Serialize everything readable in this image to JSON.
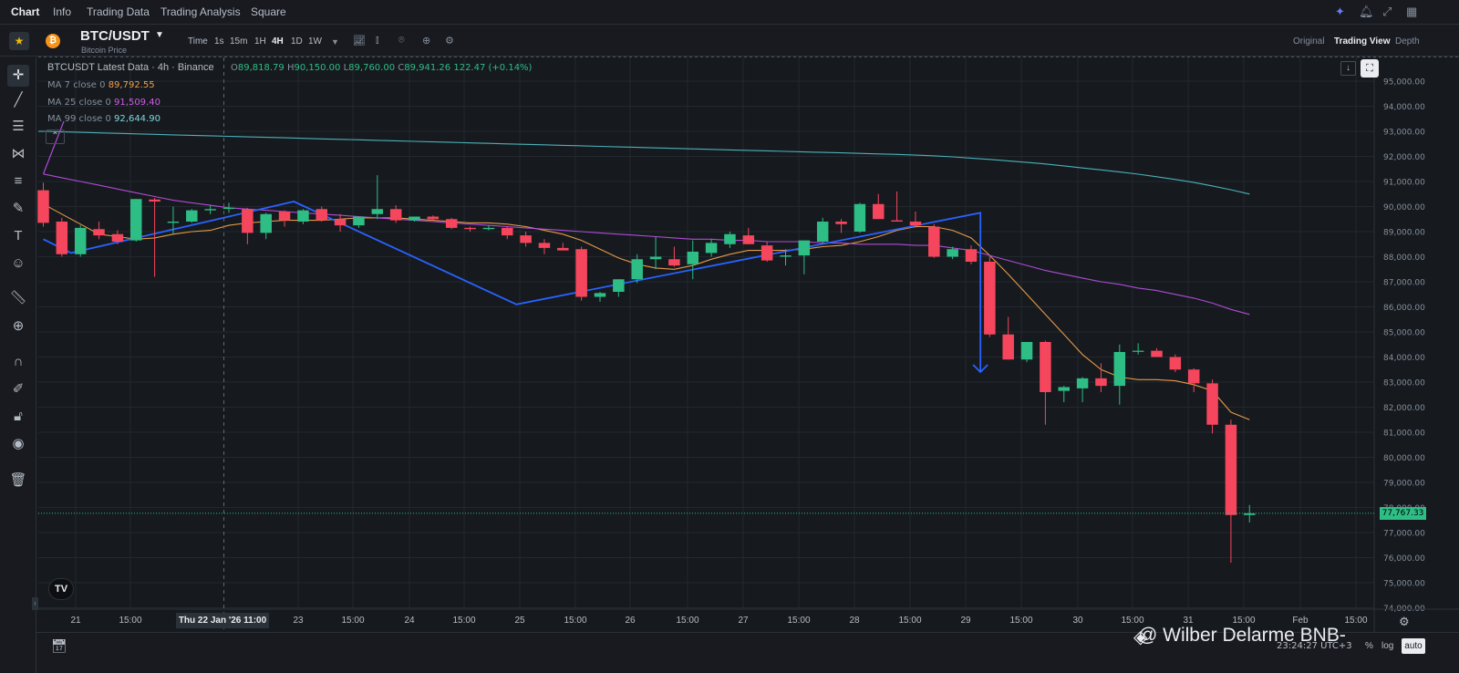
{
  "topnav": {
    "items": [
      "Chart",
      "Info",
      "Trading Data",
      "Trading Analysis",
      "Square"
    ],
    "active": "Chart",
    "right_icons": [
      "sparkle-icon",
      "bell-icon",
      "expand-icon",
      "layout-grid-icon"
    ]
  },
  "symbol": {
    "pair": "BTC/USDT",
    "subtitle": "Bitcoin Price",
    "coin_glyph": "₿",
    "timeframes": [
      "Time",
      "1s",
      "15m",
      "1H",
      "4H",
      "1D",
      "1W"
    ],
    "active_timeframe": "4H",
    "view_modes": [
      "Original",
      "Trading View",
      "Depth"
    ],
    "active_view": "Trading View"
  },
  "legend": {
    "title": "BTCUSDT Latest Data · 4h · Binance",
    "ohlc": {
      "o": "89,818.79",
      "h": "90,150.00",
      "l": "89,760.00",
      "c": "89,941.26",
      "change": "122.47 (+0.14%)"
    },
    "ma7": {
      "label": "MA 7 close 0",
      "value": "89,792.55"
    },
    "ma25": {
      "label": "MA 25 close 0",
      "value": "91,509.40"
    },
    "ma99": {
      "label": "MA 99 close 0",
      "value": "92,644.90"
    }
  },
  "colors": {
    "up": "#2ebd85",
    "down": "#f6465d",
    "ma7": "#f0a04b",
    "ma25": "#b74ee0",
    "ma99": "#4fb8c2",
    "trendline": "#2962ff",
    "grid": "#232830",
    "background": "#161a1e"
  },
  "current_price": "77,767.33",
  "crosshair_date_label": "Thu 22 Jan '26   11:00",
  "bottom": {
    "watermark": "@ Wilber Delarme BNB-",
    "clock": "23:24:27 UTC+3",
    "pct": "%",
    "log": "log",
    "auto": "auto"
  },
  "tools": [
    "crosshair-icon",
    "trendline-icon",
    "horizontal-lines-icon",
    "pattern-icon",
    "fib-icon",
    "brush-icon",
    "text-icon",
    "emoji-icon",
    "ruler-icon",
    "zoom-in-icon",
    "magnet-icon",
    "lock-drawing-icon",
    "lock-icon",
    "eye-icon",
    "trash-icon"
  ],
  "chart_data": {
    "type": "candlestick",
    "title": "BTC/USDT 4h",
    "xlabel": "",
    "ylabel": "",
    "ylim": [
      74000,
      96000
    ],
    "y_ticks": [
      "95,000.00",
      "94,000.00",
      "93,000.00",
      "92,000.00",
      "91,000.00",
      "90,000.00",
      "89,000.00",
      "88,000.00",
      "87,000.00",
      "86,000.00",
      "85,000.00",
      "84,000.00",
      "83,000.00",
      "82,000.00",
      "81,000.00",
      "80,000.00",
      "79,000.00",
      "78,000.00",
      "77,000.00",
      "76,000.00",
      "75,000.00",
      "74,000.00"
    ],
    "x_ticks": [
      "21",
      "15:00",
      "23",
      "15:00",
      "24",
      "15:00",
      "25",
      "15:00",
      "26",
      "15:00",
      "27",
      "15:00",
      "28",
      "15:00",
      "29",
      "15:00",
      "30",
      "15:00",
      "31",
      "15:00",
      "Feb",
      "15:00"
    ],
    "candles": [
      [
        90650,
        90950,
        89200,
        89350
      ],
      [
        89400,
        89550,
        88000,
        88100
      ],
      [
        88100,
        89250,
        88000,
        89150
      ],
      [
        89100,
        89400,
        88700,
        88850
      ],
      [
        88900,
        89050,
        88500,
        88600
      ],
      [
        88650,
        90300,
        88600,
        90300
      ],
      [
        90280,
        90350,
        87200,
        90200
      ],
      [
        89350,
        90000,
        88900,
        89400
      ],
      [
        89400,
        89900,
        89350,
        89850
      ],
      [
        89850,
        90050,
        89700,
        89900
      ],
      [
        89950,
        90150,
        89750,
        89950
      ],
      [
        89900,
        89950,
        88500,
        88950
      ],
      [
        88950,
        89750,
        88700,
        89700
      ],
      [
        89800,
        89850,
        89200,
        89450
      ],
      [
        89400,
        89900,
        89300,
        89850
      ],
      [
        89900,
        90000,
        89400,
        89450
      ],
      [
        89500,
        89700,
        89000,
        89250
      ],
      [
        89250,
        89600,
        89150,
        89600
      ],
      [
        89700,
        91250,
        89500,
        89900
      ],
      [
        89900,
        90050,
        89350,
        89450
      ],
      [
        89450,
        89600,
        89400,
        89600
      ],
      [
        89600,
        89650,
        89450,
        89500
      ],
      [
        89500,
        89550,
        89100,
        89150
      ],
      [
        89150,
        89200,
        89000,
        89100
      ],
      [
        89100,
        89250,
        89050,
        89150
      ],
      [
        89150,
        89200,
        88700,
        88850
      ],
      [
        88850,
        89000,
        88400,
        88550
      ],
      [
        88550,
        88700,
        88100,
        88350
      ],
      [
        88350,
        88550,
        88250,
        88250
      ],
      [
        88300,
        88400,
        86250,
        86400
      ],
      [
        86400,
        86600,
        86200,
        86550
      ],
      [
        86600,
        87100,
        86400,
        87100
      ],
      [
        87100,
        88100,
        86950,
        87900
      ],
      [
        87900,
        88800,
        87500,
        88000
      ],
      [
        87900,
        88400,
        87600,
        87650
      ],
      [
        87700,
        88650,
        87100,
        88200
      ],
      [
        88150,
        88700,
        88000,
        88550
      ],
      [
        88500,
        89000,
        88350,
        88900
      ],
      [
        88850,
        89150,
        88500,
        88500
      ],
      [
        88450,
        88600,
        87800,
        87850
      ],
      [
        88000,
        88300,
        87650,
        88050
      ],
      [
        88050,
        88650,
        87300,
        88650
      ],
      [
        88600,
        89550,
        88550,
        89400
      ],
      [
        89400,
        89500,
        88950,
        89300
      ],
      [
        89000,
        90150,
        88950,
        90100
      ],
      [
        90100,
        90500,
        89500,
        89500
      ],
      [
        89450,
        90600,
        89400,
        89400
      ],
      [
        89400,
        89800,
        89150,
        89250
      ],
      [
        89200,
        89300,
        87950,
        88000
      ],
      [
        88000,
        88400,
        87900,
        88300
      ],
      [
        88300,
        88450,
        87700,
        87800
      ],
      [
        87800,
        88000,
        84800,
        84900
      ],
      [
        84900,
        85600,
        83900,
        83900
      ],
      [
        83900,
        84600,
        83800,
        84600
      ],
      [
        84600,
        84650,
        81300,
        82600
      ],
      [
        82650,
        82850,
        82200,
        82800
      ],
      [
        82750,
        83200,
        82200,
        83150
      ],
      [
        83150,
        83750,
        82600,
        82850
      ],
      [
        82850,
        84500,
        82100,
        84200
      ],
      [
        84250,
        84550,
        84100,
        84250
      ],
      [
        84250,
        84350,
        84000,
        84000
      ],
      [
        84000,
        84100,
        83400,
        83500
      ],
      [
        83500,
        83550,
        82600,
        82950
      ],
      [
        82950,
        83100,
        80950,
        81300
      ],
      [
        81300,
        81500,
        75800,
        77700
      ],
      [
        77700,
        78100,
        77400,
        77767
      ]
    ],
    "series": [
      {
        "name": "MA 7",
        "values": [
          90100,
          89700,
          89300,
          88900,
          88800,
          88700,
          88750,
          88900,
          89000,
          89050,
          89250,
          89350,
          89400,
          89450,
          89450,
          89450,
          89500,
          89550,
          89550,
          89550,
          89500,
          89450,
          89400,
          89350,
          89350,
          89300,
          89200,
          89050,
          88900,
          88650,
          88300,
          87950,
          87700,
          87550,
          87500,
          87650,
          87900,
          88100,
          88250,
          88250,
          88250,
          88300,
          88400,
          88450,
          88600,
          88800,
          89050,
          89200,
          89200,
          89050,
          88750,
          88050,
          87300,
          86500,
          85700,
          84900,
          84100,
          83500,
          83200,
          83100,
          83100,
          83050,
          82900,
          82650,
          81800,
          81500
        ]
      },
      {
        "name": "MA 25",
        "values": [
          91300,
          91150,
          91000,
          90850,
          90700,
          90550,
          90400,
          90250,
          90150,
          90050,
          89950,
          89900,
          89850,
          89800,
          89750,
          89700,
          89650,
          89600,
          89550,
          89500,
          89450,
          89400,
          89350,
          89300,
          89250,
          89200,
          89150,
          89100,
          89050,
          89000,
          88950,
          88900,
          88850,
          88800,
          88750,
          88700,
          88700,
          88650,
          88650,
          88600,
          88600,
          88600,
          88550,
          88550,
          88500,
          88500,
          88500,
          88450,
          88450,
          88350,
          88250,
          88050,
          87850,
          87650,
          87450,
          87300,
          87150,
          87000,
          86900,
          86750,
          86650,
          86500,
          86350,
          86150,
          85900,
          85700
        ]
      },
      {
        "name": "MA 99",
        "values": [
          93000,
          92980,
          92960,
          92940,
          92920,
          92900,
          92880,
          92860,
          92840,
          92820,
          92800,
          92780,
          92760,
          92740,
          92720,
          92700,
          92680,
          92660,
          92640,
          92620,
          92600,
          92580,
          92560,
          92540,
          92520,
          92500,
          92480,
          92460,
          92440,
          92420,
          92400,
          92380,
          92360,
          92340,
          92320,
          92300,
          92280,
          92260,
          92240,
          92220,
          92200,
          92180,
          92160,
          92140,
          92120,
          92100,
          92080,
          92050,
          92020,
          91980,
          91930,
          91880,
          91820,
          91760,
          91700,
          91620,
          91540,
          91460,
          91380,
          91290,
          91190,
          91080,
          90960,
          90820,
          90670,
          90500
        ]
      }
    ],
    "trendline": [
      [
        0,
        88700
      ],
      [
        1.5,
        88150
      ],
      [
        13.5,
        90200
      ],
      [
        25.5,
        86100
      ],
      [
        50.5,
        89750
      ],
      [
        50.5,
        83400
      ]
    ],
    "grid": true
  }
}
